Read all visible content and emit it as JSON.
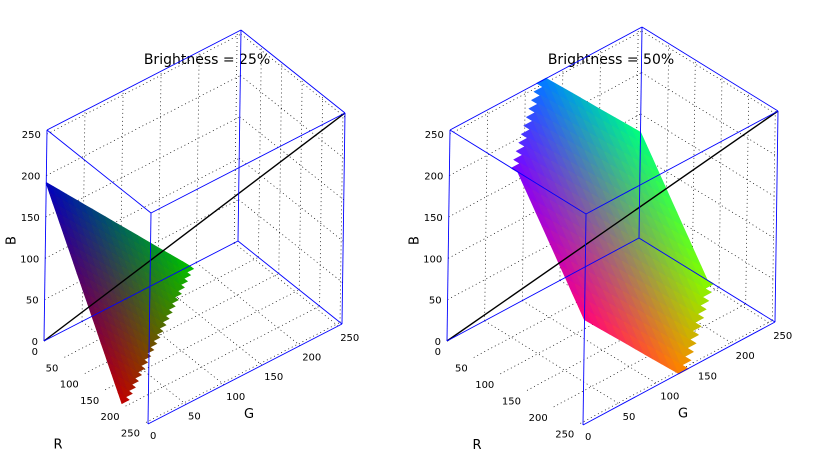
{
  "figure": {
    "colors": {
      "background": "#ffffff",
      "box_edges": "#0000ff",
      "gridlines": "#000000",
      "diagonal": "#000000"
    }
  },
  "chart_data": [
    {
      "type": "scatter",
      "subtype": "3d-color-plane",
      "title": "Brightness = 25%",
      "xlabel": "R",
      "ylabel": "G",
      "zlabel": "B",
      "xlim": [
        0,
        255
      ],
      "ylim": [
        0,
        255
      ],
      "zlim": [
        0,
        255
      ],
      "x_ticks": [
        "0",
        "50",
        "100",
        "150",
        "200",
        "250"
      ],
      "y_ticks": [
        "0",
        "50",
        "100",
        "150",
        "200",
        "250"
      ],
      "z_ticks": [
        "0",
        "50",
        "100",
        "150",
        "200",
        "250"
      ],
      "grid": true,
      "brightness": 0.25,
      "plane_sum": 191.25,
      "plane_vertices": [
        [
          191.25,
          0,
          0
        ],
        [
          0,
          191.25,
          0
        ],
        [
          0,
          0,
          191.25
        ]
      ],
      "diagonal": [
        [
          0,
          0,
          0
        ],
        [
          255,
          255,
          255
        ]
      ]
    },
    {
      "type": "scatter",
      "subtype": "3d-color-plane",
      "title": "Brightness = 50%",
      "xlabel": "R",
      "ylabel": "G",
      "zlabel": "B",
      "xlim": [
        0,
        255
      ],
      "ylim": [
        0,
        255
      ],
      "zlim": [
        0,
        255
      ],
      "x_ticks": [
        "0",
        "50",
        "100",
        "150",
        "200",
        "250"
      ],
      "y_ticks": [
        "0",
        "50",
        "100",
        "150",
        "200",
        "250"
      ],
      "z_ticks": [
        "0",
        "50",
        "100",
        "150",
        "200",
        "250"
      ],
      "grid": true,
      "brightness": 0.5,
      "plane_sum": 382.5,
      "plane_vertices": [
        [
          255,
          127.5,
          0
        ],
        [
          127.5,
          255,
          0
        ],
        [
          0,
          255,
          127.5
        ],
        [
          0,
          127.5,
          255
        ],
        [
          127.5,
          0,
          255
        ],
        [
          255,
          0,
          127.5
        ]
      ],
      "diagonal": [
        [
          0,
          0,
          0
        ],
        [
          255,
          255,
          255
        ]
      ]
    }
  ]
}
